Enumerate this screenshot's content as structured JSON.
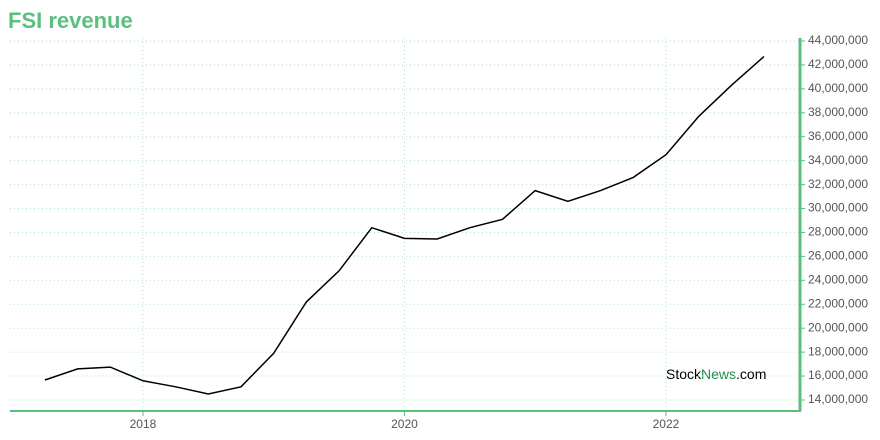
{
  "chart_data": {
    "type": "line",
    "title": "FSI revenue",
    "watermark": [
      "Stock",
      "News",
      ".com"
    ],
    "x": [
      2017.25,
      2017.5,
      2017.75,
      2018,
      2018.25,
      2018.5,
      2018.75,
      2019,
      2019.25,
      2019.5,
      2019.75,
      2020,
      2020.25,
      2020.5,
      2020.75,
      2021,
      2021.25,
      2021.5,
      2021.75,
      2022,
      2022.25,
      2022.5,
      2022.75
    ],
    "series": [
      {
        "name": "FSI revenue",
        "color": "#000000",
        "values": [
          15670000,
          16600000,
          16750000,
          15600000,
          15100000,
          14500000,
          15100000,
          17900000,
          22200000,
          24800000,
          28400000,
          27500000,
          27450000,
          28400000,
          29100000,
          31500000,
          30600000,
          31500000,
          32600000,
          34500000,
          37700000,
          40300000,
          42700000
        ]
      }
    ],
    "xlim": [
      2016.983,
      2023.025
    ],
    "xticks": [
      2018,
      2020,
      2022
    ],
    "ylim": [
      13080000,
      44250000
    ],
    "yticks": [
      {
        "value": 14000000,
        "label": "14,000,000"
      },
      {
        "value": 16000000,
        "label": "16,000,000"
      },
      {
        "value": 18000000,
        "label": "18,000,000"
      },
      {
        "value": 20000000,
        "label": "20,000,000"
      },
      {
        "value": 22000000,
        "label": "22,000,000"
      },
      {
        "value": 24000000,
        "label": "24,000,000"
      },
      {
        "value": 26000000,
        "label": "26,000,000"
      },
      {
        "value": 28000000,
        "label": "28,000,000"
      },
      {
        "value": 30000000,
        "label": "30,000,000"
      },
      {
        "value": 32000000,
        "label": "32,000,000"
      },
      {
        "value": 34000000,
        "label": "34,000,000"
      },
      {
        "value": 36000000,
        "label": "36,000,000"
      },
      {
        "value": 38000000,
        "label": "38,000,000"
      },
      {
        "value": 40000000,
        "label": "40,000,000"
      },
      {
        "value": 42000000,
        "label": "42,000,000"
      },
      {
        "value": 44000000,
        "label": "44,000,000"
      }
    ],
    "grid": true,
    "axis_color": "#5bbf7f"
  }
}
